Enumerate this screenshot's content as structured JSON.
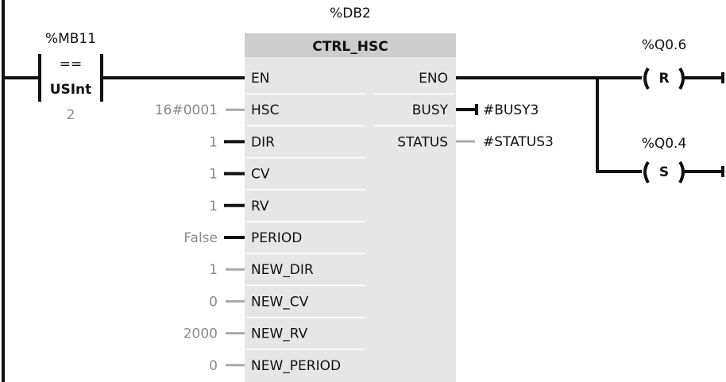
{
  "colors": {
    "wire": "#111111",
    "unconnected_wire": "#a8a8a8",
    "block_body": "#e6e6e6",
    "block_header": "#cdcdcd",
    "constant_text": "#8a8a8a"
  },
  "contact": {
    "operand": "%MB11",
    "operator": "==",
    "type": "USInt",
    "compare_value": "2"
  },
  "block": {
    "instance": "%DB2",
    "name": "CTRL_HSC",
    "inputs": [
      {
        "pin": "EN",
        "value": "",
        "connected": true
      },
      {
        "pin": "HSC",
        "value": "16#0001",
        "connected": false
      },
      {
        "pin": "DIR",
        "value": "1",
        "connected": true
      },
      {
        "pin": "CV",
        "value": "1",
        "connected": true
      },
      {
        "pin": "RV",
        "value": "1",
        "connected": true
      },
      {
        "pin": "PERIOD",
        "value": "False",
        "connected": true
      },
      {
        "pin": "NEW_DIR",
        "value": "1",
        "connected": false
      },
      {
        "pin": "NEW_CV",
        "value": "0",
        "connected": false
      },
      {
        "pin": "NEW_RV",
        "value": "2000",
        "connected": false
      },
      {
        "pin": "NEW_PERIOD",
        "value": "0",
        "connected": false
      }
    ],
    "outputs": [
      {
        "pin": "ENO",
        "value": ""
      },
      {
        "pin": "BUSY",
        "value": "#BUSY3"
      },
      {
        "pin": "STATUS",
        "value": "#STATUS3"
      }
    ]
  },
  "coils": [
    {
      "operand": "%Q0.6",
      "type": "R"
    },
    {
      "operand": "%Q0.4",
      "type": "S"
    }
  ]
}
